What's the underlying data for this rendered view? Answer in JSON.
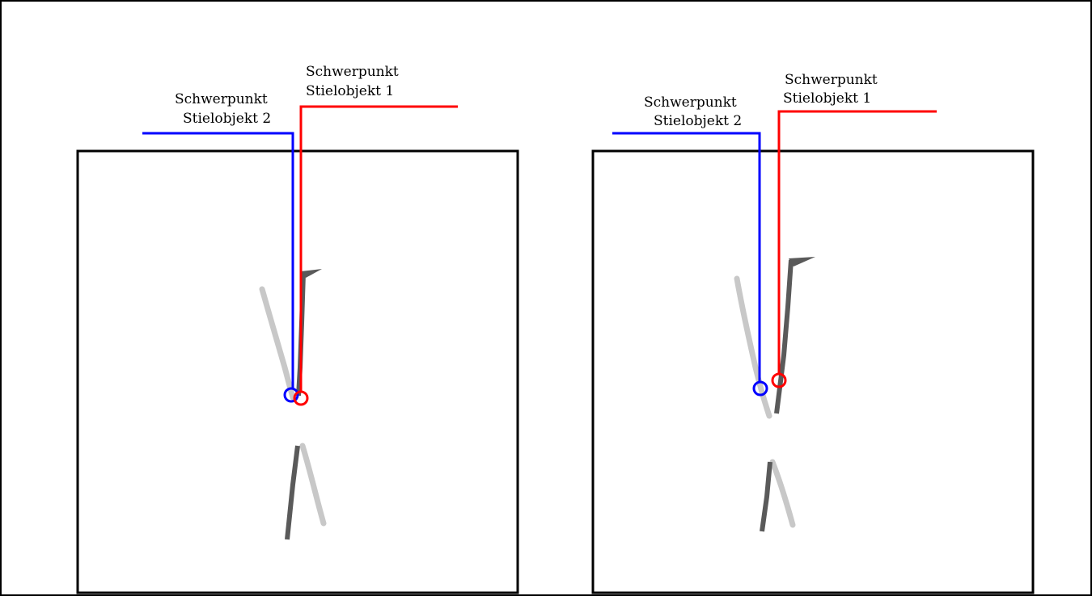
{
  "colors": {
    "background": "#ffffff",
    "frame": "#000000",
    "object1_centroid": "#ff0000",
    "object2_centroid": "#0000ff",
    "stem_dark": "#5a5a5a",
    "stem_light": "#c8c8c8"
  },
  "panels": [
    {
      "label_object1_line1": "Schwerpunkt",
      "label_object1_line2": "Stielobjekt 1",
      "label_object2_line1": "Schwerpunkt",
      "label_object2_line2": "Stielobjekt 2"
    },
    {
      "label_object1_line1": "Schwerpunkt",
      "label_object1_line2": "Stielobjekt 1",
      "label_object2_line1": "Schwerpunkt",
      "label_object2_line2": "Stielobjekt 2"
    }
  ]
}
